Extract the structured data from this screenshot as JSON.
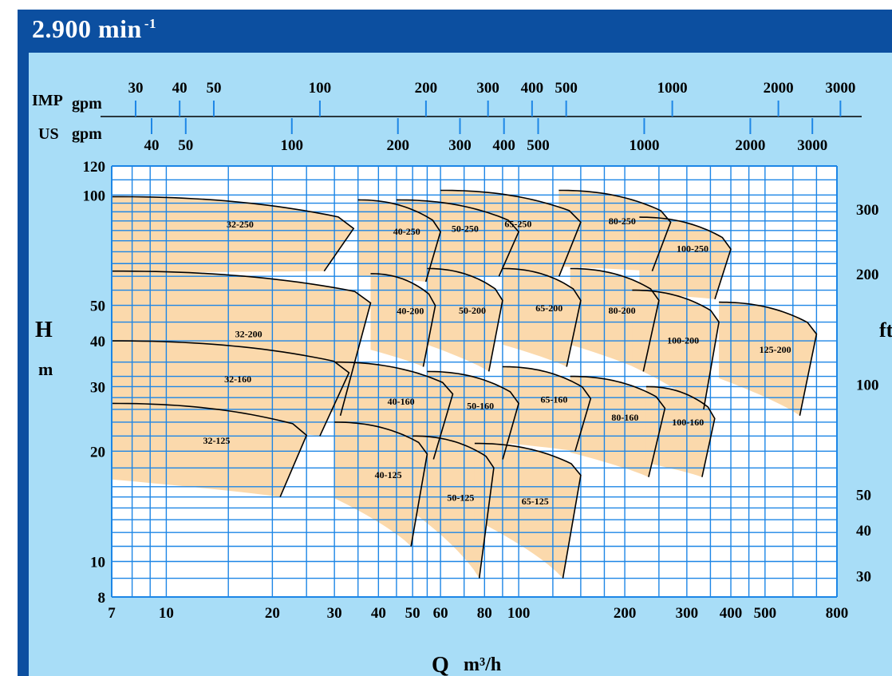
{
  "title": "2.900 min",
  "title_exponent": "-1",
  "colors": {
    "frame": "#0c4fa0",
    "panel": "#a8ddf7",
    "grid": "#1d86e6",
    "region_fill": "#fbd9ac",
    "curve": "#000000"
  },
  "chart_data": {
    "type": "area",
    "x_scale": "log",
    "y_scale": "log",
    "xlim": [
      7,
      800
    ],
    "ylim": [
      8,
      120
    ],
    "x_ticks": [
      "7",
      "10",
      "20",
      "30",
      "40",
      "50",
      "60",
      "80",
      "100",
      "200",
      "300",
      "400",
      "500",
      "800"
    ],
    "y_ticks": [
      "8",
      "10",
      "20",
      "30",
      "40",
      "50",
      "100",
      "120"
    ],
    "xlabel": "Q",
    "xunit": "m³/h",
    "ylabel": "H",
    "yunit": "m",
    "right_axis": {
      "label": "ft",
      "ticks": [
        "30",
        "40",
        "50",
        "100",
        "200",
        "300"
      ]
    },
    "top_axes": [
      {
        "label": "IMP",
        "unit": "gpm",
        "ticks": [
          "30",
          "40",
          "50",
          "100",
          "200",
          "300",
          "400",
          "500",
          "1000",
          "2000",
          "3000"
        ]
      },
      {
        "label": "US",
        "unit": "gpm",
        "ticks": [
          "40",
          "50",
          "100",
          "200",
          "300",
          "400",
          "500",
          "1000",
          "2000",
          "3000"
        ]
      }
    ],
    "series": [
      {
        "name": "32-125",
        "q_range": [
          7,
          25
        ],
        "h_range": [
          15,
          27
        ]
      },
      {
        "name": "32-160",
        "q_range": [
          7,
          33
        ],
        "h_range": [
          22,
          40
        ]
      },
      {
        "name": "32-200",
        "q_range": [
          7,
          38
        ],
        "h_range": [
          25,
          62
        ]
      },
      {
        "name": "32-250",
        "q_range": [
          7,
          34
        ],
        "h_range": [
          62,
          99
        ]
      },
      {
        "name": "40-125",
        "q_range": [
          30,
          55
        ],
        "h_range": [
          11,
          24
        ]
      },
      {
        "name": "40-160",
        "q_range": [
          30,
          65
        ],
        "h_range": [
          19,
          35
        ]
      },
      {
        "name": "40-200",
        "q_range": [
          38,
          58
        ],
        "h_range": [
          34,
          61
        ]
      },
      {
        "name": "40-250",
        "q_range": [
          35,
          60
        ],
        "h_range": [
          58,
          97
        ]
      },
      {
        "name": "50-125",
        "q_range": [
          50,
          85
        ],
        "h_range": [
          9,
          22
        ]
      },
      {
        "name": "50-160",
        "q_range": [
          55,
          100
        ],
        "h_range": [
          19,
          33
        ]
      },
      {
        "name": "50-200",
        "q_range": [
          55,
          90
        ],
        "h_range": [
          33,
          63
        ]
      },
      {
        "name": "50-250",
        "q_range": [
          45,
          100
        ],
        "h_range": [
          60,
          97
        ]
      },
      {
        "name": "65-125",
        "q_range": [
          75,
          150
        ],
        "h_range": [
          9,
          21
        ]
      },
      {
        "name": "65-160",
        "q_range": [
          90,
          160
        ],
        "h_range": [
          20,
          34
        ]
      },
      {
        "name": "65-200",
        "q_range": [
          90,
          150
        ],
        "h_range": [
          34,
          63
        ]
      },
      {
        "name": "65-250",
        "q_range": [
          60,
          150
        ],
        "h_range": [
          60,
          103
        ]
      },
      {
        "name": "80-160",
        "q_range": [
          140,
          260
        ],
        "h_range": [
          17,
          32
        ]
      },
      {
        "name": "80-200",
        "q_range": [
          140,
          250
        ],
        "h_range": [
          33,
          63
        ]
      },
      {
        "name": "80-250",
        "q_range": [
          130,
          270
        ],
        "h_range": [
          62,
          103
        ]
      },
      {
        "name": "100-160",
        "q_range": [
          230,
          360
        ],
        "h_range": [
          17,
          30
        ]
      },
      {
        "name": "100-200",
        "q_range": [
          210,
          370
        ],
        "h_range": [
          26,
          55
        ]
      },
      {
        "name": "100-250",
        "q_range": [
          220,
          400
        ],
        "h_range": [
          52,
          87
        ]
      },
      {
        "name": "125-200",
        "q_range": [
          370,
          700
        ],
        "h_range": [
          25,
          51
        ]
      }
    ]
  }
}
